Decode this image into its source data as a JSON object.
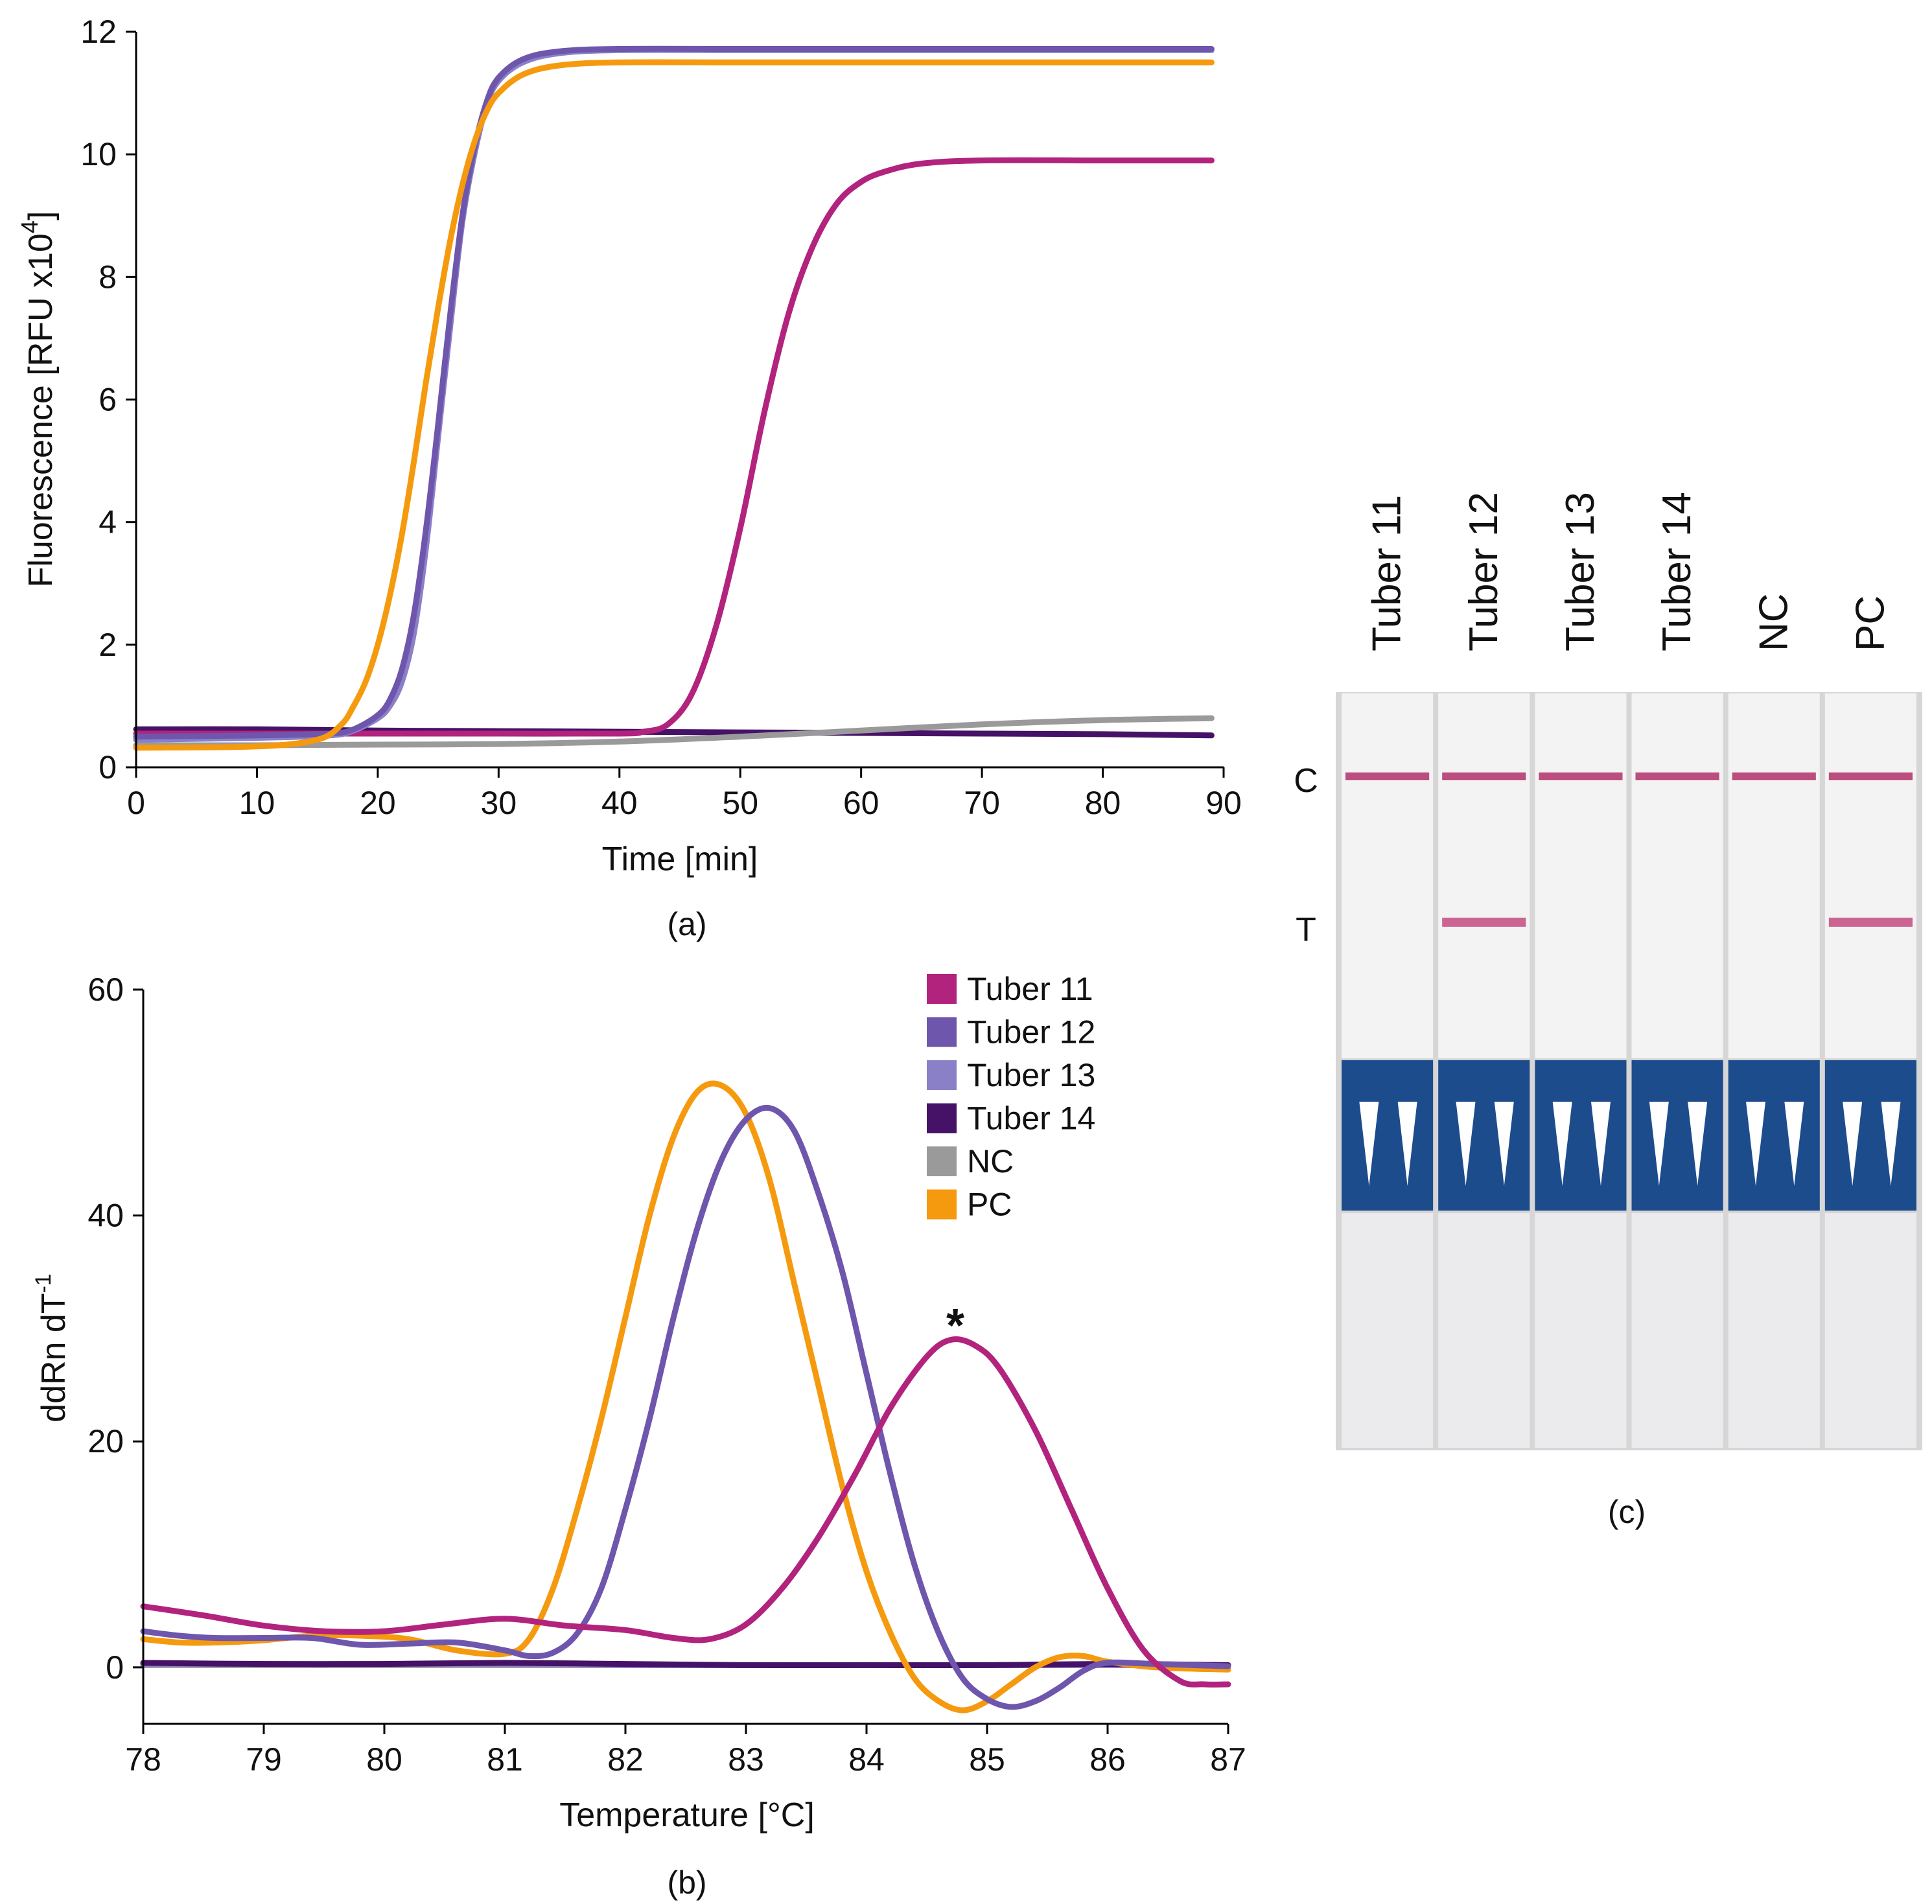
{
  "colors": {
    "Tuber 11": "#b2237e",
    "Tuber 12": "#6e56ad",
    "Tuber 13": "#8a80c8",
    "Tuber 14": "#461267",
    "NC": "#9a9a9a",
    "PC": "#f59a0e"
  },
  "chart_data": [
    {
      "type": "line",
      "caption": "(a)",
      "title": "",
      "xlabel": "Time [min]",
      "ylabel": "Fluorescence [RFU x10",
      "ylabel_sup": "4",
      "ylabel_end": "]",
      "xlim": [
        0,
        90
      ],
      "ylim": [
        0,
        12
      ],
      "xticks": [
        "0",
        "10",
        "20",
        "30",
        "40",
        "50",
        "60",
        "70",
        "80",
        "90"
      ],
      "yticks": [
        "0",
        "2",
        "4",
        "6",
        "8",
        "10",
        "12"
      ],
      "series": [
        {
          "name": "Tuber 14",
          "x": [
            0,
            10,
            20,
            30,
            40,
            50,
            60,
            70,
            80,
            89
          ],
          "y": [
            0.62,
            0.62,
            0.6,
            0.59,
            0.58,
            0.57,
            0.56,
            0.55,
            0.54,
            0.52
          ]
        },
        {
          "name": "NC",
          "x": [
            0,
            10,
            20,
            30,
            40,
            50,
            60,
            70,
            80,
            89
          ],
          "y": [
            0.36,
            0.36,
            0.37,
            0.38,
            0.42,
            0.5,
            0.6,
            0.7,
            0.77,
            0.8
          ]
        },
        {
          "name": "Tuber 11",
          "x": [
            0,
            10,
            20,
            30,
            40,
            42,
            44,
            46,
            48,
            50,
            52,
            54,
            56,
            58,
            60,
            62,
            65,
            70,
            80,
            89
          ],
          "y": [
            0.55,
            0.55,
            0.55,
            0.55,
            0.55,
            0.58,
            0.7,
            1.2,
            2.3,
            3.9,
            5.8,
            7.4,
            8.5,
            9.2,
            9.55,
            9.72,
            9.85,
            9.9,
            9.9,
            9.9
          ]
        },
        {
          "name": "Tuber 13",
          "x": [
            0,
            10,
            16,
            18,
            20,
            21,
            22,
            23,
            24,
            25,
            26,
            27,
            28,
            29,
            30,
            32,
            35,
            40,
            50,
            60,
            70,
            80,
            89
          ],
          "y": [
            0.45,
            0.48,
            0.52,
            0.6,
            0.8,
            1.0,
            1.4,
            2.2,
            3.6,
            5.4,
            7.2,
            8.9,
            10.0,
            10.8,
            11.2,
            11.5,
            11.65,
            11.7,
            11.7,
            11.7,
            11.7,
            11.7,
            11.7
          ]
        },
        {
          "name": "Tuber 12",
          "x": [
            0,
            10,
            16,
            18,
            20,
            21,
            22,
            23,
            24,
            25,
            26,
            27,
            28,
            29,
            30,
            32,
            35,
            40,
            50,
            60,
            70,
            80,
            89
          ],
          "y": [
            0.5,
            0.52,
            0.55,
            0.62,
            0.85,
            1.1,
            1.6,
            2.5,
            3.9,
            5.6,
            7.4,
            9.0,
            10.1,
            10.85,
            11.25,
            11.55,
            11.68,
            11.72,
            11.72,
            11.72,
            11.72,
            11.72,
            11.72
          ]
        },
        {
          "name": "PC",
          "x": [
            0,
            10,
            15,
            17,
            18,
            19,
            20,
            21,
            22,
            23,
            24,
            25,
            26,
            27,
            28,
            29,
            30,
            32,
            35,
            40,
            50,
            60,
            70,
            80,
            89
          ],
          "y": [
            0.32,
            0.34,
            0.45,
            0.7,
            1.0,
            1.4,
            2.0,
            2.8,
            3.8,
            5.0,
            6.3,
            7.5,
            8.6,
            9.5,
            10.2,
            10.7,
            11.0,
            11.3,
            11.45,
            11.5,
            11.5,
            11.5,
            11.5,
            11.5,
            11.5
          ]
        }
      ]
    },
    {
      "type": "line",
      "caption": "(b)",
      "title": "",
      "xlabel": "Temperature [°C]",
      "ylabel": "ddRn dT",
      "ylabel_sup": "-1",
      "xlim": [
        78,
        87
      ],
      "ylim": [
        -5,
        60
      ],
      "xticks": [
        "78",
        "79",
        "80",
        "81",
        "82",
        "83",
        "84",
        "85",
        "86",
        "87"
      ],
      "yticks": [
        "0",
        "20",
        "40",
        "60"
      ],
      "legend": [
        "Tuber 11",
        "Tuber 12",
        "Tuber 13",
        "Tuber 14",
        "NC",
        "PC"
      ],
      "legend_position": "top-right",
      "annotation": "*",
      "series": [
        {
          "name": "NC",
          "x": [
            78,
            79,
            80,
            81,
            82,
            83,
            84,
            85,
            86,
            87
          ],
          "y": [
            0.2,
            0.2,
            0.2,
            0.2,
            0.2,
            0.2,
            0.2,
            0.2,
            0.2,
            0.2
          ]
        },
        {
          "name": "Tuber 13",
          "x": [
            78,
            79,
            80,
            81,
            82,
            83,
            84,
            85,
            86,
            87
          ],
          "y": [
            0.3,
            0.3,
            0.3,
            0.3,
            0.2,
            0.2,
            0.2,
            0.2,
            0.2,
            0.2
          ]
        },
        {
          "name": "Tuber 14",
          "x": [
            78,
            79,
            80,
            81,
            82,
            83,
            84,
            85,
            86,
            87
          ],
          "y": [
            0.4,
            0.3,
            0.3,
            0.4,
            0.3,
            0.2,
            0.2,
            0.2,
            0.3,
            0.2
          ]
        },
        {
          "name": "PC",
          "x": [
            78,
            78.3,
            78.6,
            79,
            79.4,
            79.8,
            80.2,
            80.6,
            81,
            81.2,
            81.4,
            81.6,
            81.8,
            82,
            82.2,
            82.4,
            82.6,
            82.8,
            83,
            83.2,
            83.4,
            83.6,
            83.8,
            84,
            84.2,
            84.4,
            84.6,
            84.8,
            85,
            85.2,
            85.4,
            85.6,
            85.8,
            86,
            86.4,
            87
          ],
          "y": [
            2.5,
            2.2,
            2.2,
            2.4,
            2.8,
            2.8,
            2.5,
            1.5,
            1.2,
            2.5,
            7,
            14,
            22,
            31,
            40,
            47,
            51,
            51.5,
            49,
            43,
            34,
            25,
            16,
            8.5,
            3,
            -1,
            -3,
            -3.8,
            -3,
            -1.5,
            0,
            0.9,
            1,
            0.5,
            0,
            -0.2
          ]
        },
        {
          "name": "Tuber 12",
          "x": [
            78,
            78.3,
            78.6,
            79,
            79.4,
            79.8,
            80.2,
            80.6,
            81,
            81.2,
            81.4,
            81.6,
            81.8,
            82,
            82.2,
            82.4,
            82.6,
            82.8,
            83,
            83.2,
            83.4,
            83.6,
            83.8,
            84,
            84.2,
            84.4,
            84.6,
            84.8,
            85,
            85.2,
            85.4,
            85.6,
            85.8,
            86,
            86.4,
            87
          ],
          "y": [
            3.2,
            2.8,
            2.6,
            2.6,
            2.6,
            2.0,
            2.1,
            2.2,
            1.5,
            1.0,
            1.3,
            3,
            7,
            14,
            22,
            31,
            39,
            45,
            48.5,
            49.5,
            47.5,
            42,
            35,
            26,
            17,
            9,
            3,
            -1,
            -2.8,
            -3.5,
            -3,
            -1.8,
            -0.3,
            0.4,
            0.3,
            0.1
          ]
        },
        {
          "name": "Tuber 11",
          "x": [
            78,
            78.5,
            79,
            79.5,
            80,
            80.5,
            81,
            81.5,
            82,
            82.4,
            82.7,
            83,
            83.3,
            83.6,
            83.9,
            84.2,
            84.5,
            84.7,
            84.9,
            85.1,
            85.4,
            85.7,
            86,
            86.3,
            86.6,
            86.8,
            87
          ],
          "y": [
            5.4,
            4.6,
            3.7,
            3.2,
            3.2,
            3.8,
            4.3,
            3.7,
            3.3,
            2.6,
            2.5,
            3.8,
            7,
            11.5,
            17,
            23,
            27.5,
            29,
            28.5,
            26.5,
            21,
            14,
            7,
            1.5,
            -1.2,
            -1.5,
            -1.5
          ]
        }
      ]
    }
  ],
  "panel_c": {
    "caption": "(c)",
    "lane_labels": [
      "Tuber 11",
      "Tuber 12",
      "Tuber 13",
      "Tuber 14",
      "NC",
      "PC"
    ],
    "band_labels": [
      "C",
      "T"
    ],
    "control_band": [
      1,
      1,
      1,
      1,
      1,
      1
    ],
    "test_band": [
      0,
      1,
      0,
      0,
      0,
      1
    ]
  }
}
